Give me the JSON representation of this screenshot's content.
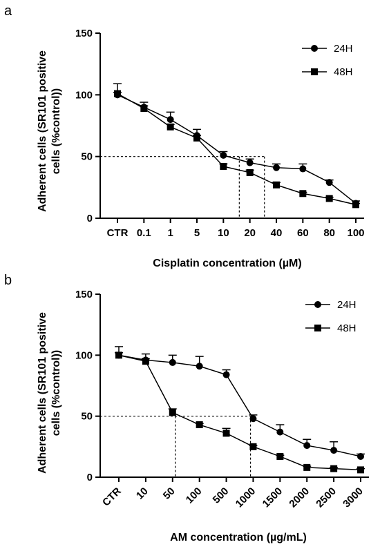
{
  "panels": [
    {
      "letter": "a",
      "type": "line",
      "categories": [
        "CTR",
        "0.1",
        "1",
        "5",
        "10",
        "20",
        "40",
        "60",
        "80",
        "100"
      ],
      "xlabel": "Cisplatin concentration (µM)",
      "ylabel_line1": "Adherent cells (SR101 positive",
      "ylabel_line2": "cells (%control))",
      "ylim": [
        0,
        150
      ],
      "yticks": [
        "0",
        "50",
        "100",
        "150"
      ],
      "series": [
        {
          "name": "24H",
          "marker": "circle",
          "values": [
            100,
            90,
            80,
            67,
            51,
            45,
            41,
            40,
            29,
            12
          ],
          "errors": [
            2,
            4,
            6,
            5,
            3,
            3,
            3,
            4,
            2,
            2
          ]
        },
        {
          "name": "48H",
          "marker": "square",
          "values": [
            101,
            89,
            74,
            65,
            42,
            37,
            27,
            20,
            16,
            11
          ],
          "errors": [
            8,
            2,
            2,
            2,
            2,
            2,
            2,
            1,
            1,
            1
          ]
        }
      ],
      "reference_lines": {
        "y": 50,
        "x_positions": [
          4.6,
          5.55
        ]
      }
    },
    {
      "letter": "b",
      "type": "line",
      "categories": [
        "CTR",
        "10",
        "50",
        "100",
        "500",
        "1000",
        "1500",
        "2000",
        "2500",
        "3000"
      ],
      "xlabel": "AM concentration (µg/mL)",
      "ylabel_line1": "Adherent cells (SR101 positive",
      "ylabel_line2": "cells (%control))",
      "ylim": [
        0,
        150
      ],
      "yticks": [
        "0",
        "50",
        "100",
        "150"
      ],
      "series": [
        {
          "name": "24H",
          "marker": "circle",
          "values": [
            100,
            96,
            94,
            91,
            84,
            48,
            37,
            26,
            22,
            17
          ],
          "errors": [
            7,
            5,
            6,
            8,
            4,
            3,
            6,
            5,
            7,
            2
          ]
        },
        {
          "name": "48H",
          "marker": "square",
          "values": [
            100,
            95,
            53,
            43,
            36,
            25,
            17,
            8,
            7,
            6
          ],
          "errors": [
            2,
            2,
            3,
            1,
            4,
            1,
            1,
            1,
            1,
            1
          ]
        }
      ],
      "reference_lines": {
        "y": 50,
        "x_positions": [
          2.1,
          4.9
        ]
      }
    }
  ]
}
